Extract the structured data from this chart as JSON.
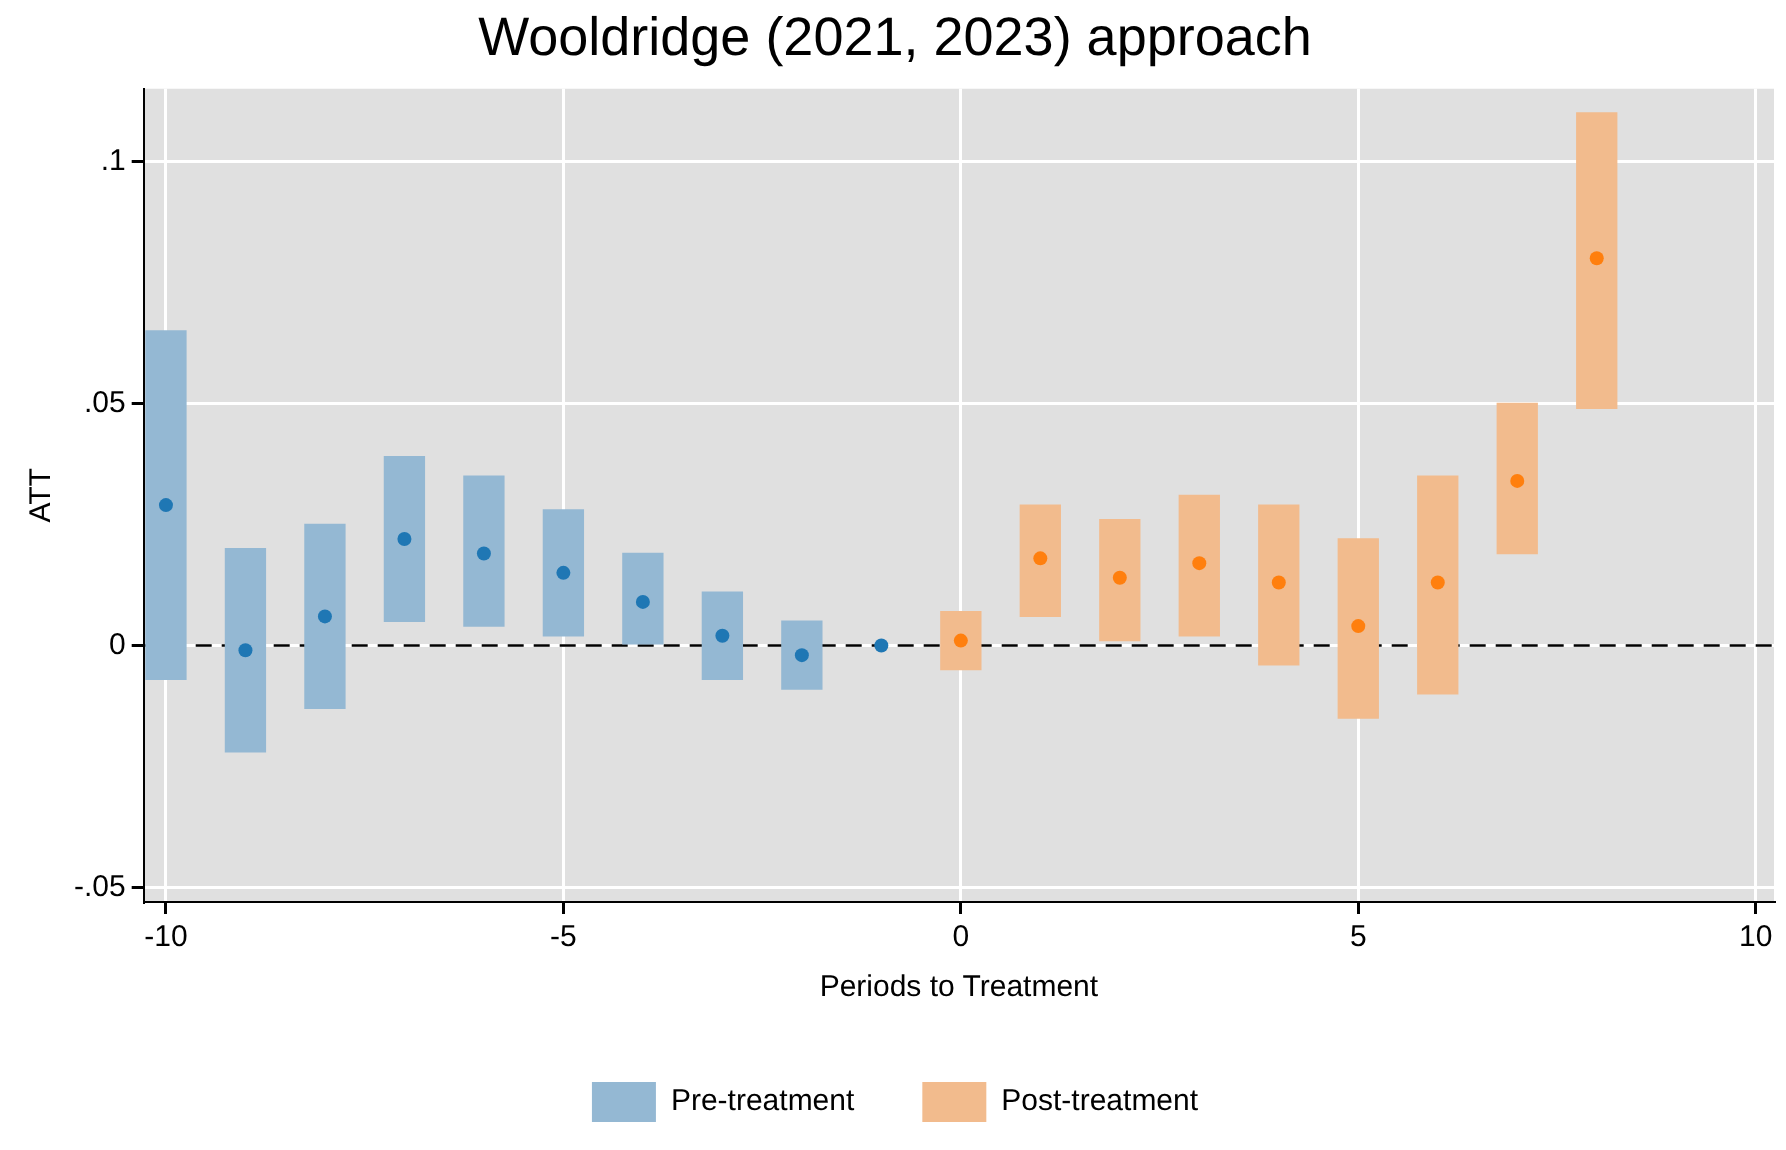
{
  "chart_data": {
    "type": "bar",
    "title": "Wooldridge (2021, 2023) approach",
    "xlabel": "Periods to Treatment",
    "ylabel": "ATT",
    "xlim": [
      -10.28,
      10.23
    ],
    "xticks": [
      -10,
      -5,
      0,
      5,
      10
    ],
    "ylim": [
      -0.053,
      0.115
    ],
    "yticks": [
      {
        "value": -0.05,
        "label": "-.05"
      },
      0,
      {
        "value": 0.05,
        "label": ".05"
      },
      {
        "value": 0.1,
        "label": ".1"
      }
    ],
    "grid": true,
    "legend": "bottom",
    "marker": "circle",
    "ref_lines": [
      {
        "axis": "y",
        "value": 0,
        "color": "#000000",
        "line_style": "dashed"
      }
    ],
    "series": [
      {
        "name": "Pre-treatment",
        "color": "#94b8d3",
        "x": [
          -10,
          -9,
          -8,
          -7,
          -6,
          -5,
          -4,
          -3,
          -2
        ],
        "base": [
          -0.007,
          -0.022,
          -0.013,
          0.005,
          0.004,
          0.002,
          0,
          -0.007,
          -0.009
        ],
        "values": [
          0.072,
          0.042,
          0.038,
          0.034,
          0.031,
          0.026,
          0.019,
          0.018,
          0.014
        ]
      },
      {
        "name": "Post-treatment",
        "color": "#f2bb8d",
        "x": [
          0,
          1,
          2,
          3,
          4,
          5,
          6,
          7,
          8
        ],
        "base": [
          -0.005,
          0.006,
          0.001,
          0.002,
          -0.004,
          -0.015,
          -0.01,
          0.019,
          0.049
        ],
        "values": [
          0.012,
          0.023,
          0.025,
          0.029,
          0.033,
          0.037,
          0.045,
          0.031,
          0.061
        ]
      },
      {
        "type": "scatter",
        "color": "#1f77b4",
        "x": [
          -10,
          -9,
          -8,
          -7,
          -6,
          -5,
          -4,
          -3,
          -2,
          -1
        ],
        "values": [
          0.029,
          -0.001,
          0.006,
          0.022,
          0.019,
          0.015,
          0.009,
          0.002,
          -0.002,
          0
        ]
      },
      {
        "type": "scatter",
        "color": "#ff7f0e",
        "x": [
          0,
          1,
          2,
          3,
          4,
          5,
          6,
          7,
          8
        ],
        "values": [
          0.001,
          0.018,
          0.014,
          0.017,
          0.013,
          0.004,
          0.013,
          0.034,
          0.08
        ]
      }
    ]
  }
}
